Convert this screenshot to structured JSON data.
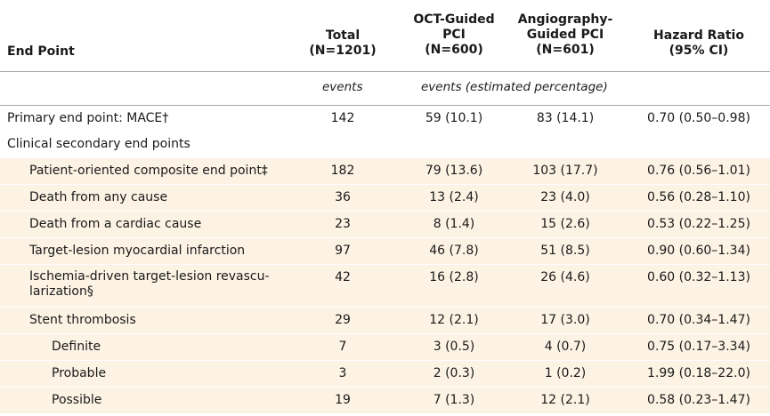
{
  "header": {
    "end_point": "End Point",
    "total": "Total\n(N=1201)",
    "oct": "OCT-Guided\nPCI\n(N=600)",
    "angio": "Angiography-\nGuided PCI\n(N=601)",
    "hr": "Hazard Ratio\n(95% CI)"
  },
  "units": {
    "total": "events",
    "groups": "events (estimated percentage)"
  },
  "rows": [
    {
      "label": "Primary end point: MACE†",
      "total": "142",
      "oct": "59 (10.1)",
      "angio": "83 (14.1)",
      "hr": "0.70 (0.50–0.98)"
    },
    {
      "label": "Clinical secondary end points",
      "total": "",
      "oct": "",
      "angio": "",
      "hr": ""
    },
    {
      "label": "Patient-oriented composite end point‡",
      "total": "182",
      "oct": "79 (13.6)",
      "angio": "103 (17.7)",
      "hr": "0.76 (0.56–1.01)"
    },
    {
      "label": "Death from any cause",
      "total": "36",
      "oct": "13 (2.4)",
      "angio": "23 (4.0)",
      "hr": "0.56 (0.28–1.10)"
    },
    {
      "label": "Death from a cardiac cause",
      "total": "23",
      "oct": "8 (1.4)",
      "angio": "15 (2.6)",
      "hr": "0.53 (0.22–1.25)"
    },
    {
      "label": "Target-lesion myocardial infarction",
      "total": "97",
      "oct": "46 (7.8)",
      "angio": "51 (8.5)",
      "hr": "0.90 (0.60–1.34)"
    },
    {
      "label": "Ischemia-driven target-lesion revascu-\nlarization§",
      "total": "42",
      "oct": "16 (2.8)",
      "angio": "26 (4.6)",
      "hr": "0.60 (0.32–1.13)"
    },
    {
      "label": "Stent thrombosis",
      "total": "29",
      "oct": "12 (2.1)",
      "angio": "17 (3.0)",
      "hr": "0.70 (0.34–1.47)"
    },
    {
      "label": "Definite",
      "total": "7",
      "oct": "3 (0.5)",
      "angio": "4 (0.7)",
      "hr": "0.75 (0.17–3.34)"
    },
    {
      "label": "Probable",
      "total": "3",
      "oct": "2 (0.3)",
      "angio": "1 (0.2)",
      "hr": "1.99 (0.18–22.0)"
    },
    {
      "label": "Possible",
      "total": "19",
      "oct": "7 (1.3)",
      "angio": "12 (2.1)",
      "hr": "0.58 (0.23–1.47)"
    }
  ]
}
